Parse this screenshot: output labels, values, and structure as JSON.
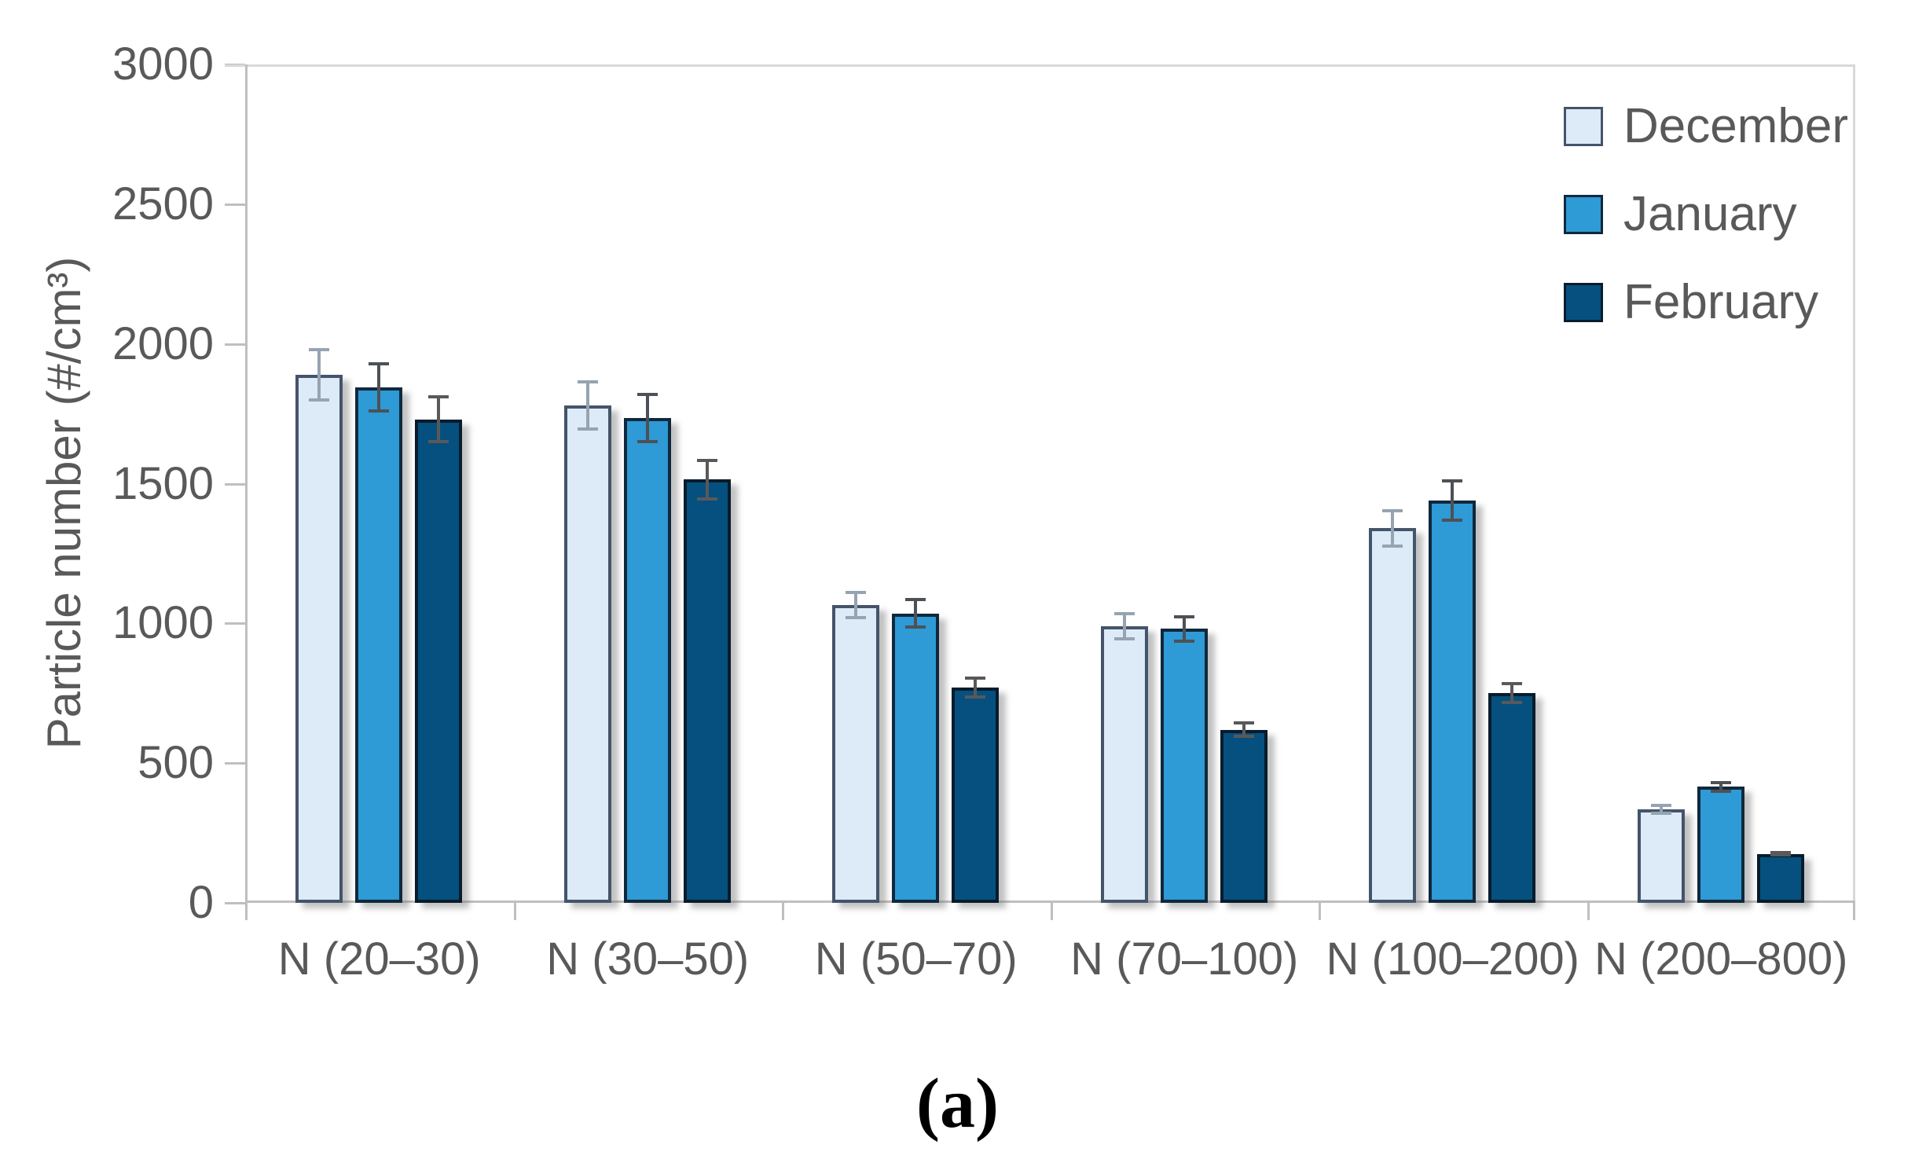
{
  "figure": {
    "caption": "(a)",
    "background_color": "#ffffff",
    "text_color": "#595959",
    "axis_color": "#bfbfbf",
    "gridline_color": "#d9d9d9"
  },
  "chart_data": {
    "type": "bar",
    "title": "",
    "xlabel": "",
    "ylabel": "Particle number (#/cm³)",
    "ylim": [
      0,
      3000
    ],
    "ytick_step": 500,
    "yticks": [
      3000,
      2500,
      2000,
      1500,
      1000,
      500,
      0
    ],
    "grid": "top line and right border only, outward ticks on both axes",
    "legend_position": "top-right inside plot",
    "categories": [
      "N (20–30)",
      "N (30–50)",
      "N (50–70)",
      "N (70–100)",
      "N (100–200)",
      "N (200–800)"
    ],
    "series": [
      {
        "name": "December",
        "fill_color": "#dcebf7",
        "border_color": "#44546a",
        "error_color": "#96a3b1",
        "values": [
          1890,
          1780,
          1065,
          990,
          1340,
          335
        ],
        "errors": [
          95,
          90,
          50,
          50,
          70,
          20
        ]
      },
      {
        "name": "January",
        "fill_color": "#2e9ad6",
        "border_color": "#10283c",
        "error_color": "#4d5156",
        "values": [
          1845,
          1735,
          1035,
          980,
          1440,
          415
        ],
        "errors": [
          90,
          90,
          55,
          50,
          75,
          20
        ]
      },
      {
        "name": "February",
        "fill_color": "#05507e",
        "border_color": "#071c2c",
        "error_color": "#595959",
        "values": [
          1730,
          1515,
          770,
          620,
          750,
          175
        ],
        "errors": [
          85,
          75,
          40,
          30,
          40,
          10
        ]
      }
    ]
  }
}
